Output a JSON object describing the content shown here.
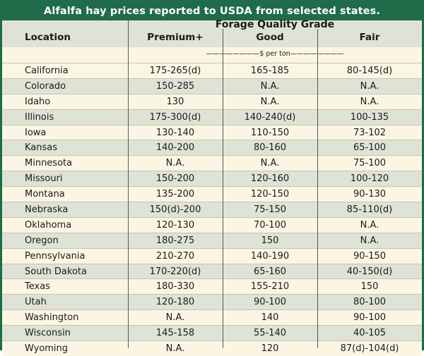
{
  "title": "Alfalfa hay prices reported to USDA from selected states.",
  "header": {
    "location": "Location",
    "group": "Forage Quality Grade",
    "premium": "Premium+",
    "good": "Good",
    "fair": "Fair",
    "units": "————————$ per ton————————"
  },
  "rows": [
    {
      "location": "California",
      "premium": "175-265(d)",
      "good": "165-185",
      "fair": "80-145(d)"
    },
    {
      "location": "Colorado",
      "premium": "150-285",
      "good": "N.A.",
      "fair": "N.A."
    },
    {
      "location": "Idaho",
      "premium": "130",
      "good": "N.A.",
      "fair": "N.A."
    },
    {
      "location": "Illinois",
      "premium": "175-300(d)",
      "good": "140-240(d)",
      "fair": "100-135"
    },
    {
      "location": "Iowa",
      "premium": "130-140",
      "good": "110-150",
      "fair": "73-102"
    },
    {
      "location": "Kansas",
      "premium": "140-200",
      "good": "80-160",
      "fair": "65-100"
    },
    {
      "location": "Minnesota",
      "premium": "N.A.",
      "good": "N.A.",
      "fair": "75-100"
    },
    {
      "location": "Missouri",
      "premium": "150-200",
      "good": "120-160",
      "fair": "100-120"
    },
    {
      "location": "Montana",
      "premium": "135-200",
      "good": "120-150",
      "fair": "90-130"
    },
    {
      "location": "Nebraska",
      "premium": "150(d)-200",
      "good": "75-150",
      "fair": "85-110(d)"
    },
    {
      "location": "Oklahoma",
      "premium": "120-130",
      "good": "70-100",
      "fair": "N.A."
    },
    {
      "location": "Oregon",
      "premium": "180-275",
      "good": "150",
      "fair": "N.A."
    },
    {
      "location": "Pennsylvania",
      "premium": "210-270",
      "good": "140-190",
      "fair": "90-150"
    },
    {
      "location": "South Dakota",
      "premium": "170-220(d)",
      "good": "65-160",
      "fair": "40-150(d)"
    },
    {
      "location": "Texas",
      "premium": "180-330",
      "good": "155-210",
      "fair": "150"
    },
    {
      "location": "Utah",
      "premium": "120-180",
      "good": "90-100",
      "fair": "80-100"
    },
    {
      "location": "Washington",
      "premium": "N.A.",
      "good": "140",
      "fair": "90-100"
    },
    {
      "location": "Wisconsin",
      "premium": "145-158",
      "good": "55-140",
      "fair": "40-105"
    },
    {
      "location": "Wyoming",
      "premium": "N.A.",
      "good": "120",
      "fair": "87(d)-104(d)"
    }
  ],
  "colors": {
    "title_bg": "#1f6b4a",
    "stripe": "#dfe3d6",
    "base": "#fbf6e4"
  }
}
